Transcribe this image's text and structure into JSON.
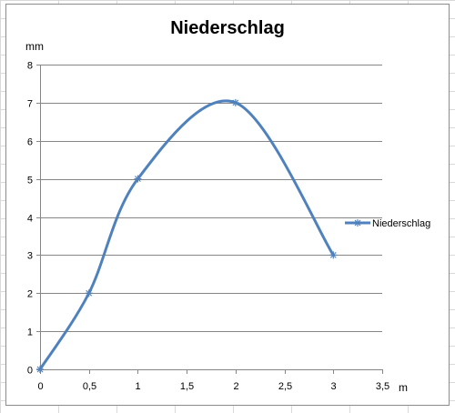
{
  "chart_data": {
    "type": "line",
    "title": "Niederschlag",
    "xlabel": "m",
    "ylabel": "mm",
    "x": [
      0,
      0.5,
      1,
      2,
      3
    ],
    "series": [
      {
        "name": "Niederschlag",
        "values": [
          0,
          2,
          5,
          7,
          3
        ],
        "color": "#4f81bd",
        "marker": "star",
        "smooth": true
      }
    ],
    "xlim": [
      0,
      3.5
    ],
    "ylim": [
      0,
      8
    ],
    "xticks": [
      "0",
      "0,5",
      "1",
      "1,5",
      "2",
      "2,5",
      "3",
      "3,5"
    ],
    "yticks": [
      "0",
      "1",
      "2",
      "3",
      "4",
      "5",
      "6",
      "7",
      "8"
    ],
    "grid": "horizontal",
    "legend_position": "right",
    "colors": {
      "series": "#4f81bd",
      "gridline": "#868686",
      "axis": "#868686",
      "sheet_grid": "#d9d9d9",
      "frame": "#8c8c8c"
    }
  }
}
